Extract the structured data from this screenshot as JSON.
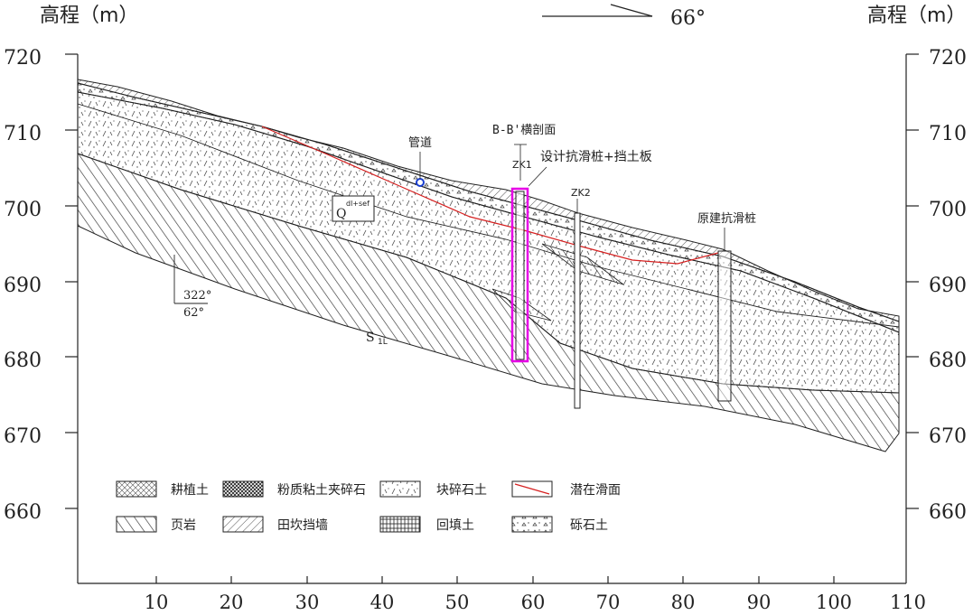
{
  "header": {
    "left_title": "高程（m）",
    "right_title": "高程（m）",
    "direction": "66°"
  },
  "axes": {
    "y_ticks": [
      "720",
      "710",
      "700",
      "690",
      "680",
      "670",
      "660"
    ],
    "x_ticks": [
      "10",
      "20",
      "30",
      "40",
      "50",
      "60",
      "70",
      "80",
      "90",
      "100",
      "110"
    ]
  },
  "annotations": {
    "pipeline": "管道",
    "section": "B-B'横剖面",
    "zk1": "ZK1",
    "zk2": "ZK2",
    "design_pile": "设计抗滑桩+挡土板",
    "existing_pile": "原建抗滑桩",
    "strata_q": "Q",
    "strata_q_sup": "dl+sef",
    "strata_s": "S",
    "strata_s_sub": "1L",
    "dip_top": "322°",
    "dip_bottom": "62°"
  },
  "legend": [
    {
      "pattern": "cultivated-soil",
      "label": "耕植土"
    },
    {
      "pattern": "silty-clay-gravel",
      "label": "粉质粘土夹碎石"
    },
    {
      "pattern": "block-gravel-soil",
      "label": "块碎石土"
    },
    {
      "pattern": "potential-slip-surface",
      "label": "潜在滑面"
    },
    {
      "pattern": "shale",
      "label": "页岩"
    },
    {
      "pattern": "terrace-retaining-wall",
      "label": "田坎挡墙"
    },
    {
      "pattern": "fill-soil",
      "label": "回填土"
    },
    {
      "pattern": "gravel-soil",
      "label": "砾石土"
    }
  ],
  "colors": {
    "line": "#222222",
    "slip": "#d62020",
    "pile_highlight": "#e600e6",
    "pipe": "#1a3fd0"
  }
}
